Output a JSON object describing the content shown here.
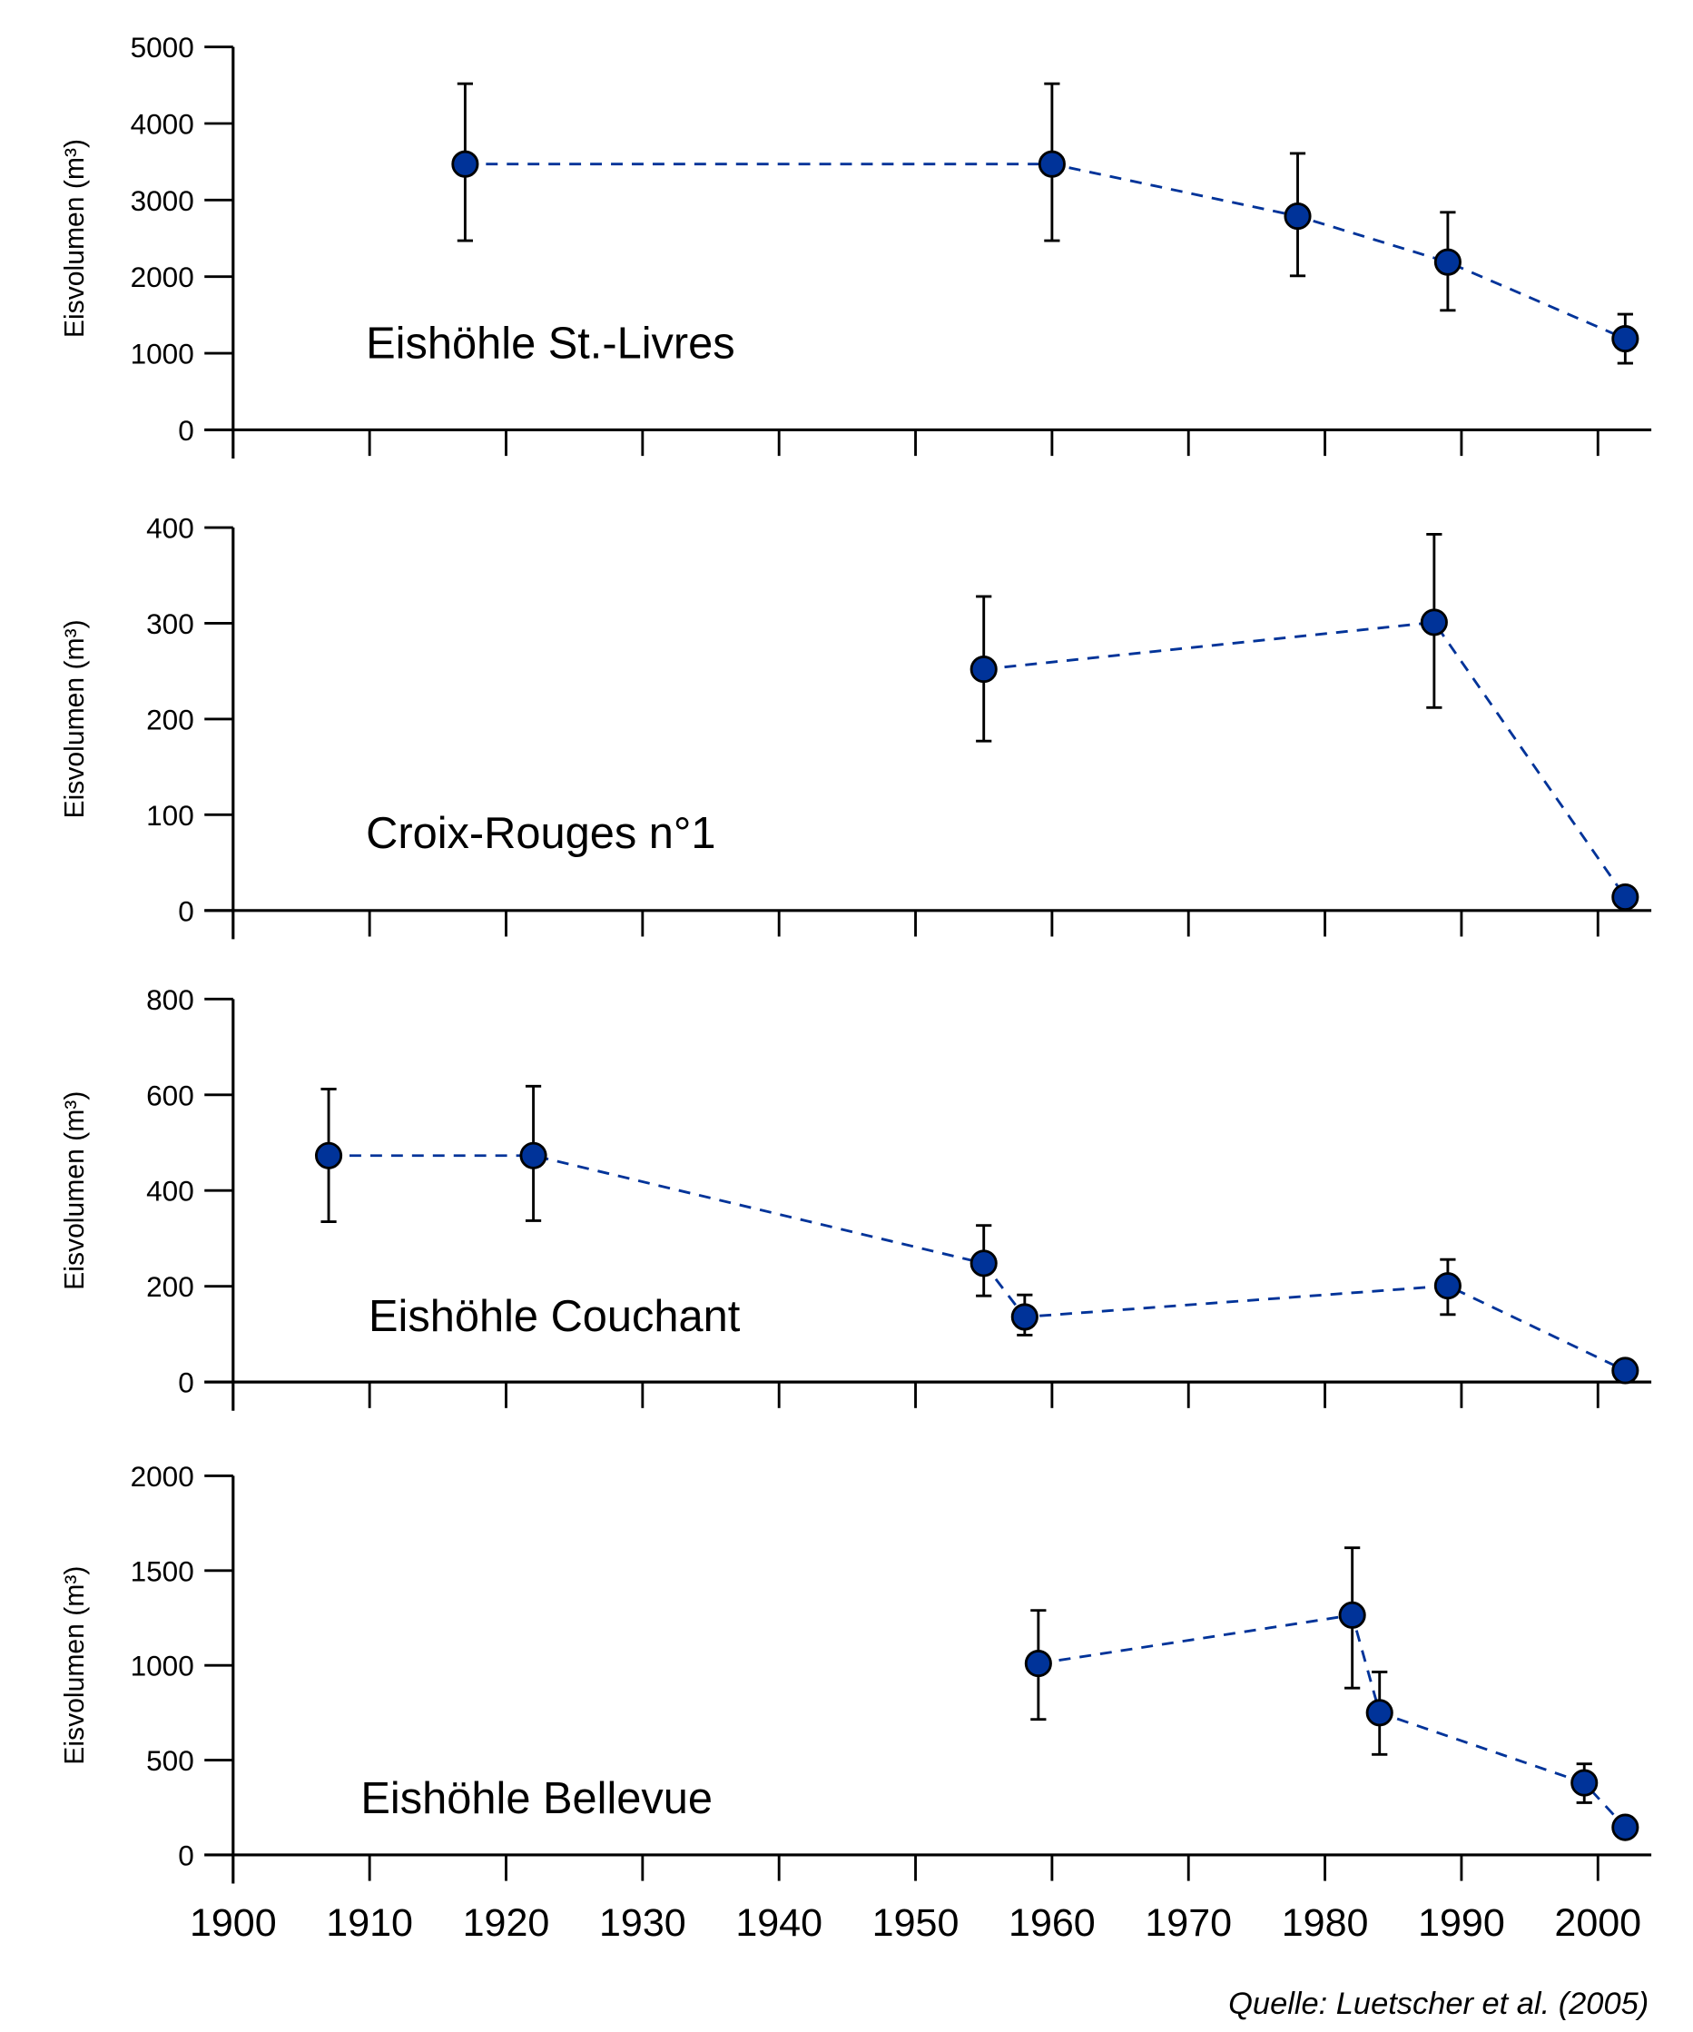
{
  "chart_data": [
    {
      "type": "scatter",
      "title": "Eishöhle St.-Livres",
      "ylabel": "Eisvolumen (m³)",
      "xlabel": "",
      "xlim": [
        1900,
        2003
      ],
      "ylim": [
        0,
        5000
      ],
      "yticks": [
        0,
        1000,
        2000,
        3000,
        4000,
        5000
      ],
      "connected": true,
      "points": [
        {
          "x": 1917,
          "y": 3470,
          "err_low": 2470,
          "err_high": 4520
        },
        {
          "x": 1960,
          "y": 3470,
          "err_low": 2470,
          "err_high": 4520
        },
        {
          "x": 1978,
          "y": 2790,
          "err_low": 2010,
          "err_high": 3610
        },
        {
          "x": 1989,
          "y": 2190,
          "err_low": 1560,
          "err_high": 2840
        },
        {
          "x": 2002,
          "y": 1190,
          "err_low": 870,
          "err_high": 1510
        }
      ]
    },
    {
      "type": "scatter",
      "title": "Croix-Rouges n°1",
      "ylabel": "Eisvolumen (m³)",
      "xlabel": "",
      "xlim": [
        1900,
        2003
      ],
      "ylim": [
        0,
        400
      ],
      "yticks": [
        0,
        100,
        200,
        300,
        400
      ],
      "connected": true,
      "points": [
        {
          "x": 1955,
          "y": 252,
          "err_low": 177,
          "err_high": 328
        },
        {
          "x": 1988,
          "y": 301,
          "err_low": 212,
          "err_high": 393
        },
        {
          "x": 2002,
          "y": 14,
          "err_low": null,
          "err_high": null
        }
      ]
    },
    {
      "type": "scatter",
      "title": "Eishöhle Couchant",
      "ylabel": "Eisvolumen (m³)",
      "xlabel": "",
      "xlim": [
        1900,
        2003
      ],
      "ylim": [
        0,
        800
      ],
      "yticks": [
        0,
        200,
        400,
        600,
        800
      ],
      "connected": true,
      "points": [
        {
          "x": 1907,
          "y": 473,
          "err_low": 335,
          "err_high": 612
        },
        {
          "x": 1922,
          "y": 473,
          "err_low": 337,
          "err_high": 618
        },
        {
          "x": 1955,
          "y": 248,
          "err_low": 180,
          "err_high": 327
        },
        {
          "x": 1958,
          "y": 136,
          "err_low": 98,
          "err_high": 182
        },
        {
          "x": 1989,
          "y": 201,
          "err_low": 141,
          "err_high": 256
        },
        {
          "x": 2002,
          "y": 24,
          "err_low": null,
          "err_high": null
        }
      ]
    },
    {
      "type": "scatter",
      "title": "Eishöhle Bellevue",
      "ylabel": "Eisvolumen (m³)",
      "xlabel": "",
      "xlim": [
        1900,
        2003
      ],
      "ylim": [
        0,
        2000
      ],
      "yticks": [
        0,
        500,
        1000,
        1500,
        2000
      ],
      "connected": true,
      "xticks": [
        1900,
        1910,
        1920,
        1930,
        1940,
        1950,
        1960,
        1970,
        1980,
        1990,
        2000
      ],
      "points": [
        {
          "x": 1959,
          "y": 1010,
          "err_low": 715,
          "err_high": 1290
        },
        {
          "x": 1982,
          "y": 1265,
          "err_low": 880,
          "err_high": 1620
        },
        {
          "x": 1984,
          "y": 750,
          "err_low": 530,
          "err_high": 965
        },
        {
          "x": 1999,
          "y": 380,
          "err_low": 275,
          "err_high": 480
        },
        {
          "x": 2002,
          "y": 145,
          "err_low": null,
          "err_high": null
        }
      ]
    }
  ],
  "xticks": [
    1900,
    1910,
    1920,
    1930,
    1940,
    1950,
    1960,
    1970,
    1980,
    1990,
    2000
  ],
  "source": "Quelle: Luetscher et al. (2005)",
  "colors": {
    "series": "#003399",
    "axis": "#000000"
  }
}
